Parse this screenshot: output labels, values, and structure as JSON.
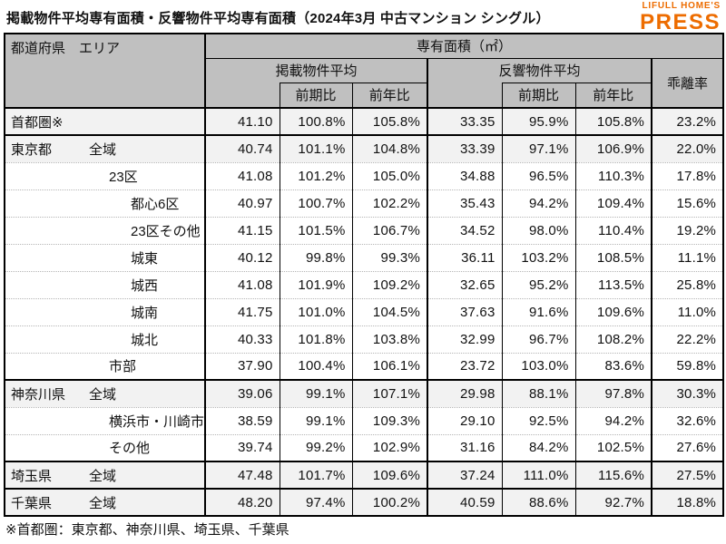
{
  "title": "掲載物件平均専有面積・反響物件平均専有面積（2024年3月 中古マンション シングル）",
  "logo": {
    "line1": "LIFULL HOME'S",
    "line2": "PRESS"
  },
  "colors": {
    "logo_orange": "#ed6c00",
    "header_bg": "#c0c0c0",
    "band_bg": "#f2f2f2",
    "border": "#000000"
  },
  "footnote": "※首都圏：東京都、神奈川県、埼玉県、千葉県",
  "table": {
    "header": {
      "area_col": "都道府県　エリア",
      "floor_area": "専有面積（㎡）",
      "listed_avg": "掲載物件平均",
      "inquiry_avg": "反響物件平均",
      "divergence": "乖離率",
      "prev_period": "前期比",
      "prev_year": "前年比"
    },
    "rows": [
      {
        "pref": "首都圏※",
        "area": "",
        "level": 0,
        "highlight": true,
        "group_start": true,
        "values": [
          "41.10",
          "100.8%",
          "105.8%",
          "33.35",
          "95.9%",
          "105.8%",
          "23.2%"
        ]
      },
      {
        "pref": "東京都",
        "area": "全域",
        "level": 1,
        "highlight": true,
        "group_start": true,
        "values": [
          "40.74",
          "101.1%",
          "104.8%",
          "33.39",
          "97.1%",
          "106.9%",
          "22.0%"
        ]
      },
      {
        "pref": "",
        "area": "23区",
        "level": 2,
        "highlight": false,
        "group_start": false,
        "values": [
          "41.08",
          "101.2%",
          "105.0%",
          "34.88",
          "96.5%",
          "110.3%",
          "17.8%"
        ]
      },
      {
        "pref": "",
        "area": "都心6区",
        "level": 3,
        "highlight": false,
        "group_start": false,
        "values": [
          "40.97",
          "100.7%",
          "102.2%",
          "35.43",
          "94.2%",
          "109.4%",
          "15.6%"
        ]
      },
      {
        "pref": "",
        "area": "23区その他",
        "level": 3,
        "highlight": false,
        "group_start": false,
        "values": [
          "41.15",
          "101.5%",
          "106.7%",
          "34.52",
          "98.0%",
          "110.4%",
          "19.2%"
        ]
      },
      {
        "pref": "",
        "area": "城東",
        "level": 3,
        "highlight": false,
        "group_start": false,
        "values": [
          "40.12",
          "99.8%",
          "99.3%",
          "36.11",
          "103.2%",
          "108.5%",
          "11.1%"
        ]
      },
      {
        "pref": "",
        "area": "城西",
        "level": 3,
        "highlight": false,
        "group_start": false,
        "values": [
          "41.08",
          "101.9%",
          "109.2%",
          "32.65",
          "95.2%",
          "113.5%",
          "25.8%"
        ]
      },
      {
        "pref": "",
        "area": "城南",
        "level": 3,
        "highlight": false,
        "group_start": false,
        "values": [
          "41.75",
          "101.0%",
          "104.5%",
          "37.63",
          "91.6%",
          "109.6%",
          "11.0%"
        ]
      },
      {
        "pref": "",
        "area": "城北",
        "level": 3,
        "highlight": false,
        "group_start": false,
        "values": [
          "40.33",
          "101.8%",
          "103.8%",
          "32.99",
          "96.7%",
          "108.2%",
          "22.2%"
        ]
      },
      {
        "pref": "",
        "area": "市部",
        "level": 2,
        "highlight": false,
        "group_start": false,
        "values": [
          "37.90",
          "100.4%",
          "106.1%",
          "23.72",
          "103.0%",
          "83.6%",
          "59.8%"
        ]
      },
      {
        "pref": "神奈川県",
        "area": "全域",
        "level": 1,
        "highlight": true,
        "group_start": true,
        "values": [
          "39.06",
          "99.1%",
          "107.1%",
          "29.98",
          "88.1%",
          "97.8%",
          "30.3%"
        ]
      },
      {
        "pref": "",
        "area": "横浜市・川崎市",
        "level": 2,
        "highlight": false,
        "group_start": false,
        "values": [
          "38.59",
          "99.1%",
          "109.3%",
          "29.10",
          "92.5%",
          "94.2%",
          "32.6%"
        ]
      },
      {
        "pref": "",
        "area": "その他",
        "level": 2,
        "highlight": false,
        "group_start": false,
        "values": [
          "39.74",
          "99.2%",
          "102.9%",
          "31.16",
          "84.2%",
          "102.5%",
          "27.6%"
        ]
      },
      {
        "pref": "埼玉県",
        "area": "全域",
        "level": 1,
        "highlight": true,
        "group_start": true,
        "values": [
          "47.48",
          "101.7%",
          "109.6%",
          "37.24",
          "111.0%",
          "115.6%",
          "27.5%"
        ]
      },
      {
        "pref": "千葉県",
        "area": "全域",
        "level": 1,
        "highlight": true,
        "group_start": true,
        "values": [
          "48.20",
          "97.4%",
          "100.2%",
          "40.59",
          "88.6%",
          "92.7%",
          "18.8%"
        ]
      }
    ]
  }
}
